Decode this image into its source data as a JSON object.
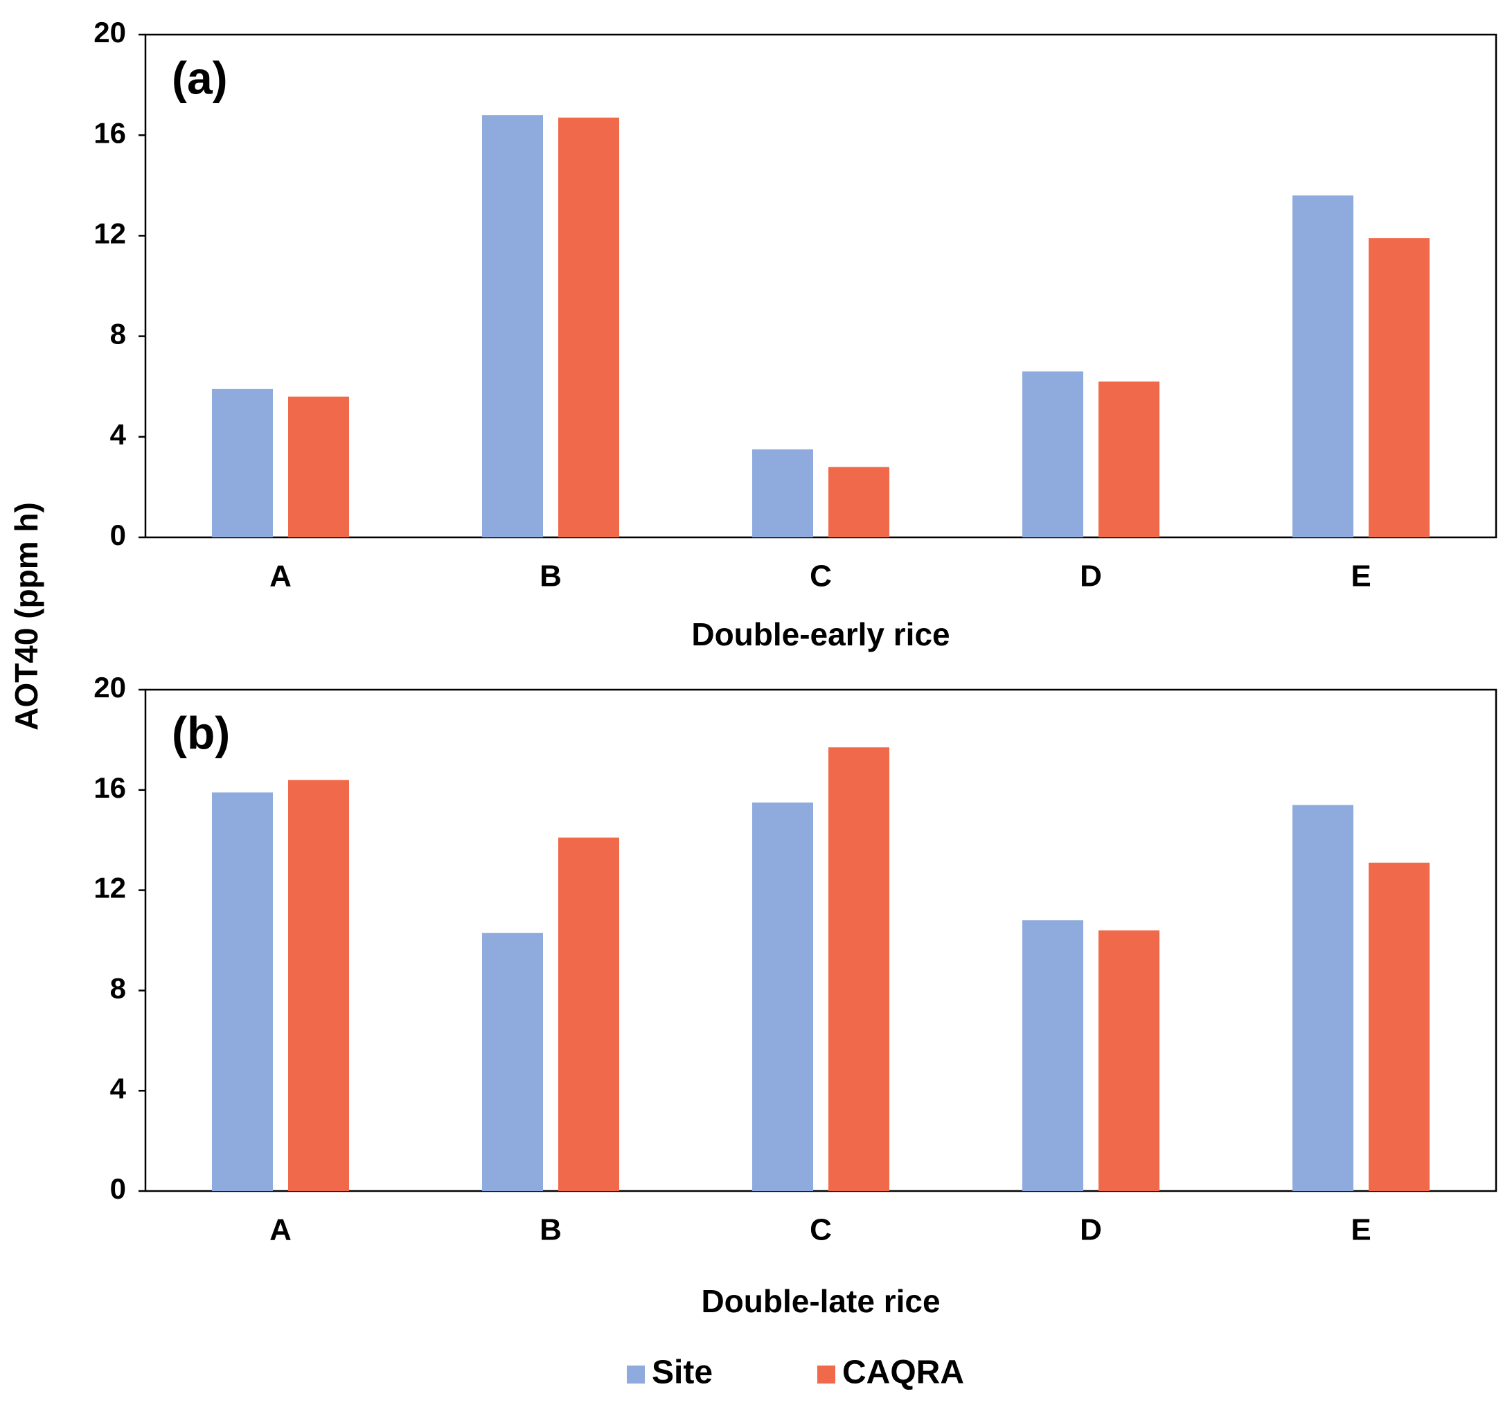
{
  "chart_data": [
    {
      "type": "bar",
      "annotation": "(a)",
      "xlabel": "Double-early rice",
      "ylabel": "AOT40  (ppm h)",
      "categories": [
        "A",
        "B",
        "C",
        "D",
        "E"
      ],
      "series": [
        {
          "name": "Site",
          "color": "#8faadc",
          "values": [
            5.9,
            16.8,
            3.5,
            6.6,
            13.6
          ]
        },
        {
          "name": "CAQRA",
          "color": "#f0694a",
          "values": [
            5.6,
            16.7,
            2.8,
            6.2,
            11.9
          ]
        }
      ],
      "ylim": [
        0,
        20
      ],
      "yticks": [
        0,
        4,
        8,
        12,
        16,
        20
      ]
    },
    {
      "type": "bar",
      "annotation": "(b)",
      "xlabel": "Double-late rice",
      "categories": [
        "A",
        "B",
        "C",
        "D",
        "E"
      ],
      "series": [
        {
          "color": "#8faadc",
          "values": [
            15.9,
            10.3,
            15.5,
            10.8,
            15.4
          ]
        },
        {
          "color": "#f0694a",
          "values": [
            16.4,
            14.1,
            17.7,
            10.4,
            13.1
          ]
        }
      ],
      "ylim": [
        0,
        20
      ],
      "yticks": [
        0,
        4,
        8,
        12,
        16,
        20
      ]
    }
  ]
}
